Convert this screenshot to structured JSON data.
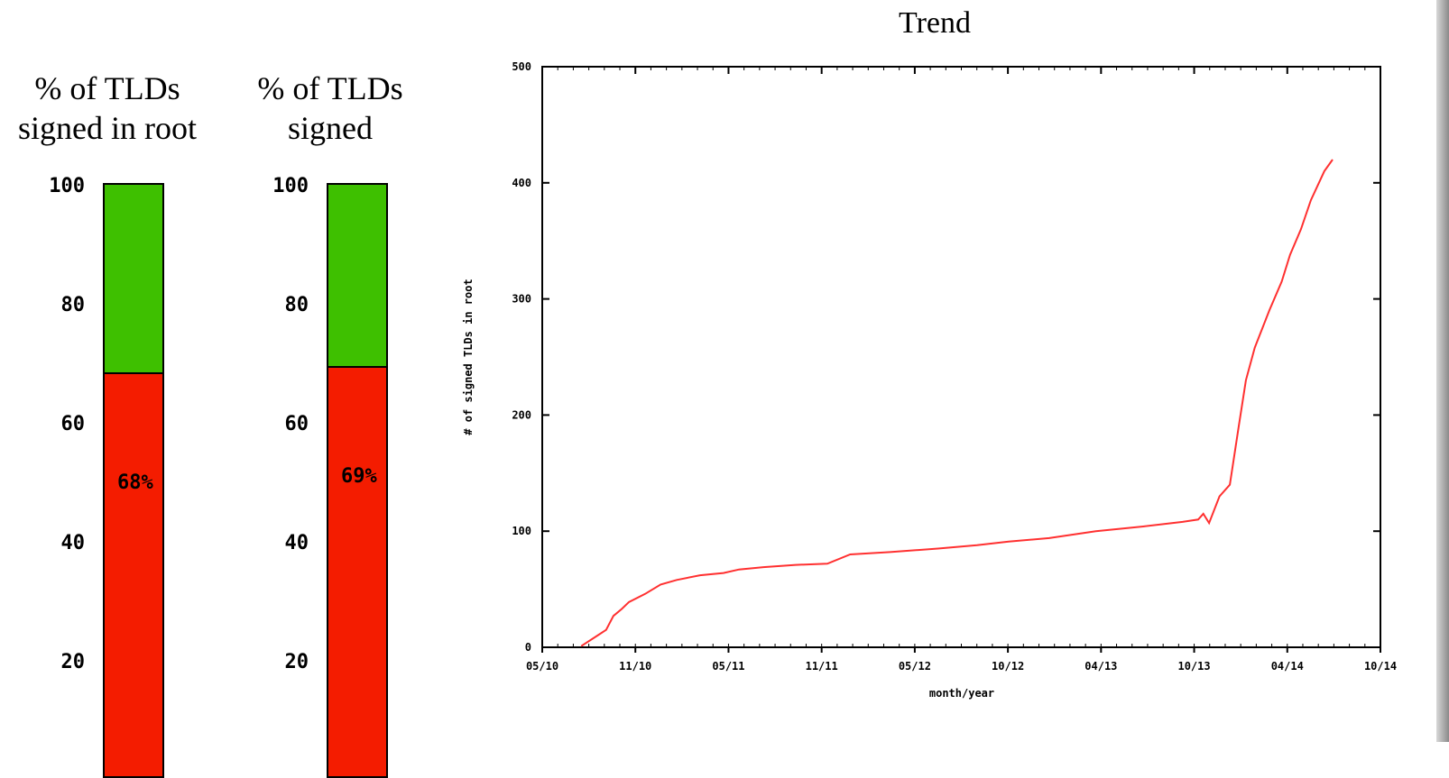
{
  "gauges": [
    {
      "title_line1": "% of TLDs",
      "title_line2": "signed in root",
      "value": 68,
      "value_label": "68%",
      "ticks": [
        "100",
        "80",
        "60",
        "40",
        "20"
      ]
    },
    {
      "title_line1": "% of TLDs",
      "title_line2": "signed",
      "value": 69,
      "value_label": "69%",
      "ticks": [
        "100",
        "80",
        "60",
        "40",
        "20"
      ]
    }
  ],
  "colors": {
    "signed": "#3ec000",
    "unsigned": "#f41c00",
    "line": "#ff3030",
    "axis": "#000000",
    "border": "#9a9a9a"
  },
  "chart_data": {
    "type": "line",
    "title": "Trend",
    "xlabel": "month/year",
    "ylabel": "# of signed TLDs in root",
    "x_ticks": [
      "05/10",
      "11/10",
      "05/11",
      "11/11",
      "05/12",
      "10/12",
      "04/13",
      "10/13",
      "04/14",
      "10/14"
    ],
    "y_ticks": [
      "0",
      "100",
      "200",
      "300",
      "400",
      "500"
    ],
    "ylim": [
      0,
      500
    ],
    "xlim": [
      "2010-05",
      "2014-10"
    ],
    "series": [
      {
        "x": [
          "2010-07-15",
          "2010-08-15",
          "2010-09-01",
          "2010-09-15",
          "2010-10-01",
          "2010-10-15",
          "2010-11-15",
          "2010-12-15",
          "2011-01-15",
          "2011-03-01",
          "2011-04-15",
          "2011-05-15",
          "2011-07-01",
          "2011-09-01",
          "2011-11-01",
          "2011-12-15",
          "2012-03-01",
          "2012-06-01",
          "2012-08-15",
          "2012-10-15",
          "2013-01-01",
          "2013-04-01",
          "2013-07-01",
          "2013-09-15",
          "2013-10-15",
          "2013-10-25",
          "2013-11-05",
          "2013-11-25",
          "2013-12-15",
          "2014-01-01",
          "2014-01-15",
          "2014-02-01",
          "2014-03-01",
          "2014-03-25",
          "2014-04-10",
          "2014-05-01",
          "2014-05-20",
          "2014-06-15",
          "2014-07-01"
        ],
        "y": [
          1,
          10,
          15,
          27,
          33,
          39,
          46,
          54,
          58,
          62,
          64,
          67,
          69,
          71,
          72,
          80,
          82,
          85,
          88,
          91,
          94,
          100,
          104,
          108,
          110,
          115,
          107,
          130,
          140,
          190,
          230,
          258,
          290,
          315,
          338,
          360,
          385,
          410,
          420
        ]
      }
    ]
  }
}
